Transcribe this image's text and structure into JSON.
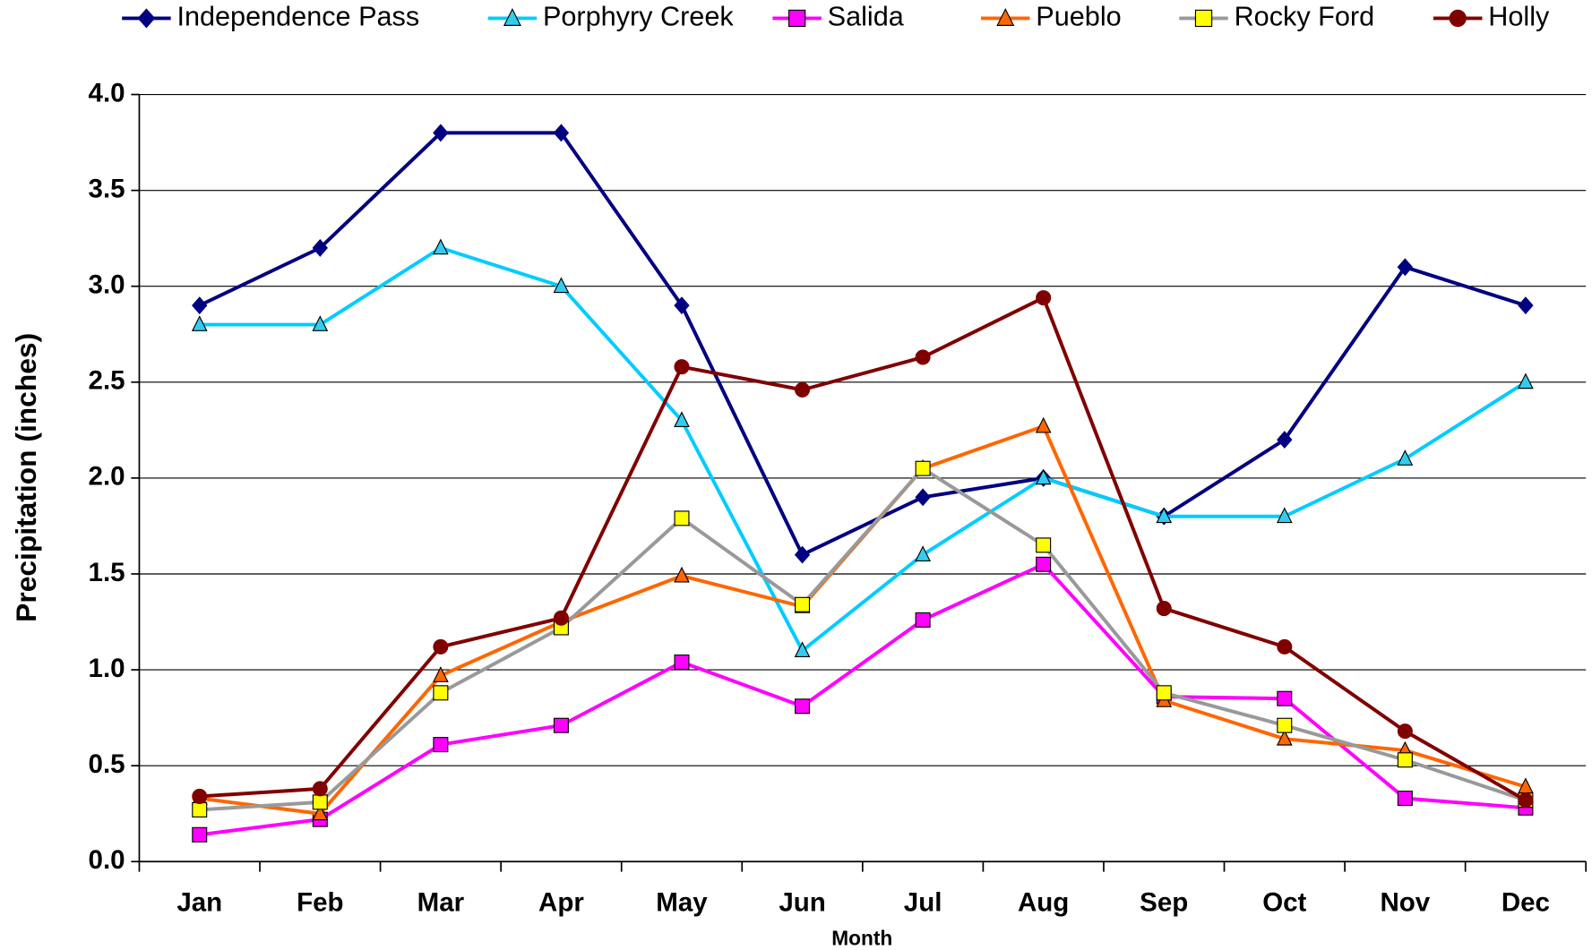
{
  "chart_data": {
    "type": "line",
    "x_label": "Month",
    "y_label": "Precipitation (inches)",
    "categories": [
      "Jan",
      "Feb",
      "Mar",
      "Apr",
      "May",
      "Jun",
      "Jul",
      "Aug",
      "Sep",
      "Oct",
      "Nov",
      "Dec"
    ],
    "ylim": [
      0,
      4
    ],
    "yticks": [
      {
        "value": 0,
        "label": "0.0"
      },
      0.5,
      {
        "value": 1,
        "label": "1.0"
      },
      1.5,
      {
        "value": 2,
        "label": "2.0"
      },
      2.5,
      {
        "value": 3,
        "label": "3.0"
      },
      3.5,
      {
        "value": 4,
        "label": "4.0"
      }
    ],
    "grid": true,
    "legend": "top",
    "series": [
      {
        "name": "Independence Pass",
        "color": "#000080",
        "marker": "diamond",
        "marker_fill": "#000080",
        "values": [
          2.9,
          3.2,
          3.8,
          3.8,
          2.9,
          1.6,
          1.9,
          2.0,
          1.8,
          2.2,
          3.1,
          2.9
        ]
      },
      {
        "name": "Porphyry Creek",
        "color": "#00ccff",
        "marker": "triangle",
        "marker_fill": "#33ccee",
        "values": [
          2.8,
          2.8,
          3.2,
          3.0,
          2.3,
          1.1,
          1.6,
          2.0,
          1.8,
          1.8,
          2.1,
          2.5
        ]
      },
      {
        "name": "Salida",
        "color": "#ff00ff",
        "marker": "square",
        "marker_fill": "#ff00ff",
        "values": [
          0.14,
          0.22,
          0.61,
          0.71,
          1.04,
          0.81,
          1.26,
          1.55,
          0.86,
          0.85,
          0.33,
          0.28
        ]
      },
      {
        "name": "Pueblo",
        "color": "#ff6600",
        "marker": "triangle",
        "marker_fill": "#ff6600",
        "values": [
          0.33,
          0.25,
          0.97,
          1.25,
          1.49,
          1.33,
          2.05,
          2.27,
          0.84,
          0.64,
          0.58,
          0.39
        ]
      },
      {
        "name": "Rocky Ford",
        "color": "#999999",
        "marker": "square",
        "marker_fill": "#ffff00",
        "values": [
          0.27,
          0.31,
          0.88,
          1.22,
          1.79,
          1.34,
          2.05,
          1.65,
          0.88,
          0.71,
          0.53,
          0.32
        ]
      },
      {
        "name": "Holly",
        "color": "#800000",
        "marker": "circle",
        "marker_fill": "#800000",
        "values": [
          0.34,
          0.38,
          1.12,
          1.27,
          2.58,
          2.46,
          2.63,
          2.94,
          1.32,
          1.12,
          0.68,
          0.32
        ]
      }
    ]
  }
}
